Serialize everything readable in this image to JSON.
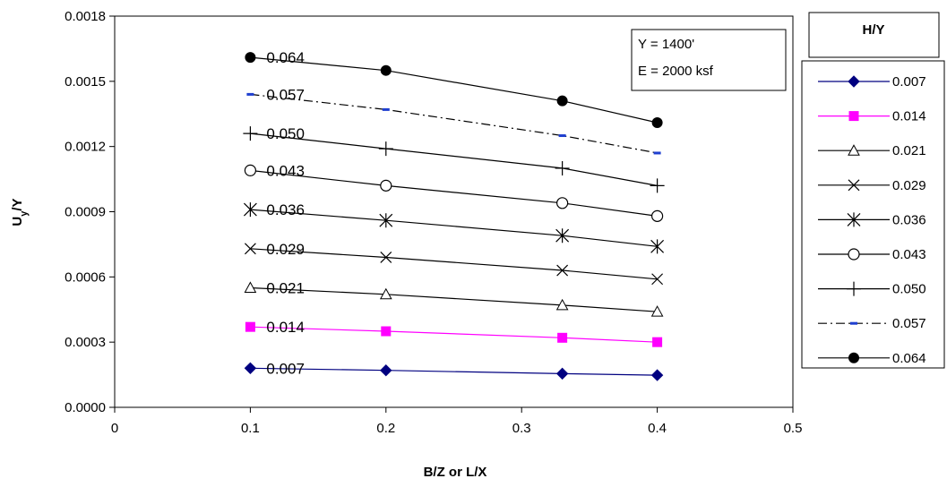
{
  "chart_data": {
    "type": "line",
    "xlabel": "B/Z or L/X",
    "ylabel": "Uy/Y",
    "xlim": [
      0,
      0.5
    ],
    "ylim": [
      0,
      0.0018
    ],
    "x_ticks": [
      "0",
      "0.1",
      "0.2",
      "0.3",
      "0.4",
      "0.5"
    ],
    "y_ticks": [
      "0.0000",
      "0.0003",
      "0.0006",
      "0.0009",
      "0.0012",
      "0.0015",
      "0.0018"
    ],
    "grid": false,
    "legend": {
      "title": "H/Y",
      "position": "right"
    },
    "annotation": [
      "Y = 1400'",
      "E = 2000 ksf"
    ],
    "series": [
      {
        "name": "0.007",
        "color": "#000080",
        "marker": "diamond",
        "dash": "solid",
        "x": [
          0.1,
          0.2,
          0.33,
          0.4
        ],
        "values": [
          0.00018,
          0.00017,
          0.000155,
          0.000148
        ]
      },
      {
        "name": "0.014",
        "color": "#ff00ff",
        "marker": "square",
        "dash": "solid",
        "x": [
          0.1,
          0.2,
          0.33,
          0.4
        ],
        "values": [
          0.00037,
          0.00035,
          0.00032,
          0.0003
        ]
      },
      {
        "name": "0.021",
        "color": "#000000",
        "marker": "triangle",
        "dash": "solid",
        "x": [
          0.1,
          0.2,
          0.33,
          0.4
        ],
        "values": [
          0.00055,
          0.00052,
          0.00047,
          0.00044
        ]
      },
      {
        "name": "0.029",
        "color": "#000000",
        "marker": "x",
        "dash": "solid",
        "x": [
          0.1,
          0.2,
          0.33,
          0.4
        ],
        "values": [
          0.00073,
          0.00069,
          0.00063,
          0.00059
        ]
      },
      {
        "name": "0.036",
        "color": "#000000",
        "marker": "star",
        "dash": "solid",
        "x": [
          0.1,
          0.2,
          0.33,
          0.4
        ],
        "values": [
          0.00091,
          0.00086,
          0.00079,
          0.00074
        ]
      },
      {
        "name": "0.043",
        "color": "#000000",
        "marker": "circle",
        "dash": "solid",
        "x": [
          0.1,
          0.2,
          0.33,
          0.4
        ],
        "values": [
          0.00109,
          0.00102,
          0.00094,
          0.00088
        ]
      },
      {
        "name": "0.050",
        "color": "#000000",
        "marker": "plus",
        "dash": "solid",
        "x": [
          0.1,
          0.2,
          0.33,
          0.4
        ],
        "values": [
          0.00126,
          0.00119,
          0.0011,
          0.00102
        ]
      },
      {
        "name": "0.057",
        "color": "#000000",
        "marker": "dash",
        "dash": "dashdot",
        "x": [
          0.1,
          0.2,
          0.33,
          0.4
        ],
        "values": [
          0.00144,
          0.00137,
          0.00125,
          0.00117
        ]
      },
      {
        "name": "0.064",
        "color": "#000000",
        "marker": "dot",
        "dash": "solid",
        "x": [
          0.1,
          0.2,
          0.33,
          0.4
        ],
        "values": [
          0.00161,
          0.00155,
          0.00141,
          0.00131
        ]
      }
    ]
  }
}
